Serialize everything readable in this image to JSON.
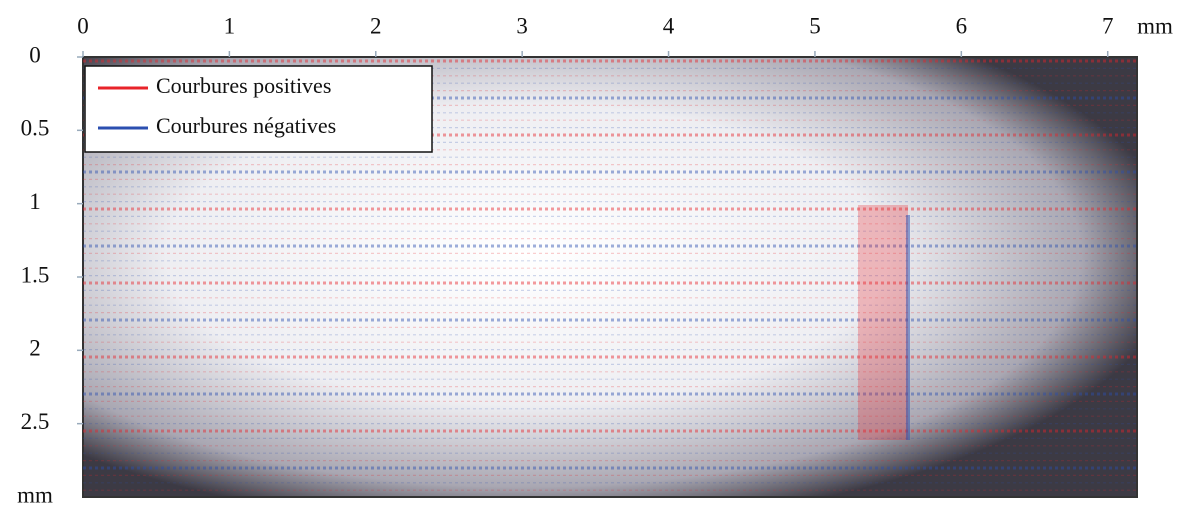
{
  "chart_data": {
    "type": "image",
    "xlim": [
      0,
      7.2
    ],
    "xticks": [
      0,
      1,
      2,
      3,
      4,
      5,
      6,
      7
    ],
    "x_unit": "mm",
    "ylim": [
      0,
      3
    ],
    "yticks": [
      0,
      0.5,
      1,
      1.5,
      2,
      2.5
    ],
    "y_unit": "mm",
    "legend": [
      {
        "name": "Courbures positives",
        "color": "#e8232a"
      },
      {
        "name": "Courbures négatives",
        "color": "#2b4fb0"
      }
    ]
  }
}
